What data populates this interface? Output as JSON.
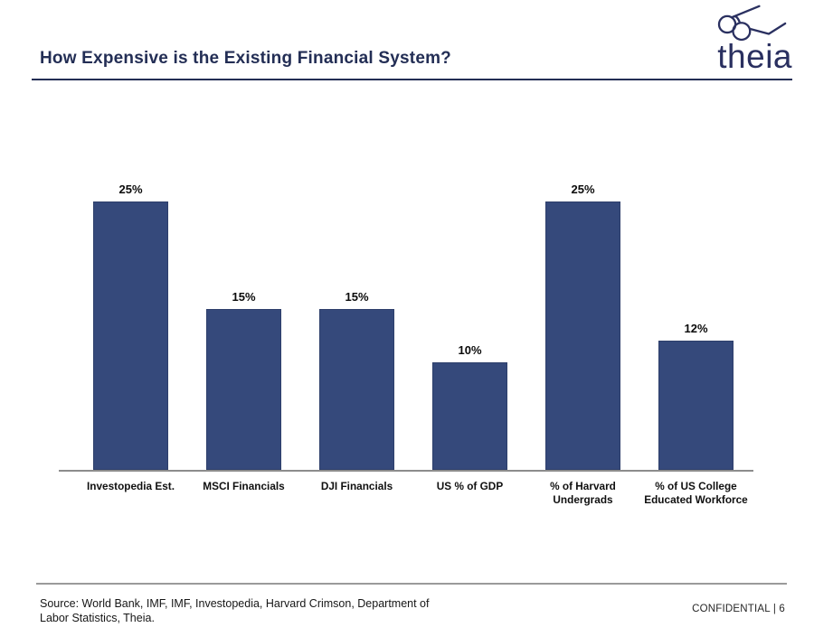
{
  "header": {
    "title": "How Expensive is the Existing Financial System?",
    "logo_text": "theia"
  },
  "chart_data": {
    "type": "bar",
    "title": "",
    "categories": [
      "Investopedia Est.",
      "MSCI Financials",
      "DJI Financials",
      "US % of GDP",
      "% of Harvard Undergrads",
      "% of US College Educated Workforce"
    ],
    "values": [
      25,
      15,
      15,
      10,
      25,
      12
    ],
    "value_labels": [
      "25%",
      "15%",
      "15%",
      "10%",
      "25%",
      "12%"
    ],
    "xlabel": "",
    "ylabel": "",
    "ylim": [
      0,
      25
    ],
    "grid": false,
    "legend": false,
    "bar_color": "#35497B",
    "bar_border_color": "#2E3F6B",
    "axis_color": "#8C8C8C"
  },
  "footer": {
    "source": "Source: World Bank, IMF, IMF, Investopedia, Harvard Crimson, Department of Labor Statistics, Theia.",
    "confidential": "CONFIDENTIAL | 6"
  },
  "colors": {
    "brand_navy": "#232E55",
    "logo_navy": "#2A3060"
  }
}
